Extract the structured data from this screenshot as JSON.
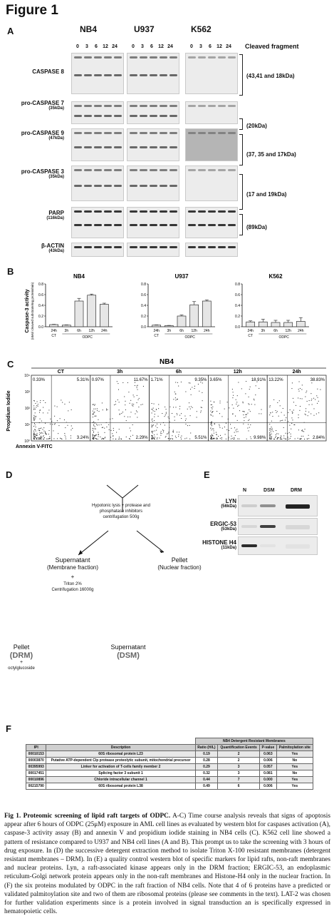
{
  "figure_title": "Figure 1",
  "panel_A": {
    "label": "A",
    "cell_lines": [
      "NB4",
      "U937",
      "K562"
    ],
    "lanes": [
      "0",
      "3",
      "6",
      "12",
      "24"
    ],
    "header_right": "Cleaved fragment",
    "rows": [
      {
        "name": "CASPASE 8",
        "kda": "",
        "fragment": "(43,41 and 18kDa)"
      },
      {
        "name": "pro-CASPASE 7",
        "kda": "(35kDa)",
        "fragment": "(20kDa)"
      },
      {
        "name": "pro-CASPASE 9",
        "kda": "(47kDa)",
        "fragment": "(37, 35 and 17kDa)"
      },
      {
        "name": "pro-CASPASE 3",
        "kda": "(35kDa)",
        "fragment": "(17 and 19kDa)"
      },
      {
        "name": "PARP",
        "kda": "(116kDa)",
        "fragment": "(89kDa)"
      },
      {
        "name": "β-ACTIN",
        "kda": "(43kDa)",
        "fragment": ""
      }
    ]
  },
  "panel_B": {
    "label": "B",
    "ylabel": "Caspase-3 activity",
    "ylabel_sub": "(nMol cleaved substrate/mg protein/min)",
    "chart_data": [
      {
        "type": "bar",
        "title": "NB4",
        "categories": [
          "24h",
          "3h",
          "6h",
          "12h",
          "24h"
        ],
        "values": [
          0.04,
          0.03,
          0.48,
          0.59,
          0.42
        ],
        "errors": [
          0.005,
          0.005,
          0.05,
          0.02,
          0.02
        ],
        "yticks": [
          "0.0",
          "0.2",
          "0.4",
          "0.6",
          "0.8"
        ],
        "ylim": [
          0,
          0.8
        ],
        "group_ct": "CT",
        "group_odpc": "ODPC"
      },
      {
        "type": "bar",
        "title": "U937",
        "categories": [
          "24h",
          "3h",
          "6h",
          "12h",
          "24h"
        ],
        "values": [
          0.03,
          0.02,
          0.2,
          0.41,
          0.48
        ],
        "errors": [
          0.005,
          0.005,
          0.02,
          0.06,
          0.02
        ],
        "yticks": [
          "0.0",
          "0.2",
          "0.4",
          "0.6",
          "0.8"
        ],
        "ylim": [
          0,
          0.8
        ],
        "group_ct": "CT",
        "group_odpc": "ODPC"
      },
      {
        "type": "bar",
        "title": "K562",
        "categories": [
          "24h",
          "3h",
          "6h",
          "12h",
          "24h"
        ],
        "values": [
          0.09,
          0.09,
          0.08,
          0.08,
          0.1
        ],
        "errors": [
          0.02,
          0.05,
          0.04,
          0.04,
          0.07
        ],
        "yticks": [
          "0.0",
          "0.2",
          "0.4",
          "0.6",
          "0.8"
        ],
        "ylim": [
          0,
          0.8
        ],
        "group_ct": "CT",
        "group_odpc": "ODPC"
      }
    ]
  },
  "panel_C": {
    "label": "C",
    "title": "NB4",
    "ylabel": "Propidium Iodide",
    "xlabel": "Annexin V-FITC",
    "ticks": [
      "10⁰",
      "10¹",
      "10²",
      "10³",
      "10⁴"
    ],
    "plots": [
      {
        "title": "CT",
        "ul": "0.33%",
        "ur": "5.31%",
        "lr": "3.24%"
      },
      {
        "title": "3h",
        "ul": "0.97%",
        "ur": "11.67%",
        "lr": "2.29%"
      },
      {
        "title": "6h",
        "ul": "1.71%",
        "ur": "9.35%",
        "lr": "5.51%"
      },
      {
        "title": "12h",
        "ul": "3.65%",
        "ur": "18.91%",
        "lr": "9.98%"
      },
      {
        "title": "24h",
        "ul": "13.22%",
        "ur": "38.83%",
        "lr": "2.84%"
      }
    ]
  },
  "panel_D": {
    "label": "D",
    "step1": "Hypotonic lysis + protease and",
    "step1b": "phosphatase inhibitors",
    "step1c": "centrifugation 500g",
    "sup1": "Supernatant",
    "sup1b": "(Membrane fraction)",
    "pellet1": "Pellet",
    "pellet1b": "(Nuclear fraction)",
    "plus": "+",
    "triton": "Triton 2%",
    "triton_b": "Centrifugation 16000g",
    "pellet2": "Pellet",
    "drm": "(DRM)",
    "octyl": "octylglucoside",
    "sup2": "Supernatant",
    "dsm": "(DSM)"
  },
  "panel_E": {
    "label": "E",
    "lanes": [
      "N",
      "DSM",
      "DRM"
    ],
    "rows": [
      {
        "name": "LYN",
        "kda": "(56kDa)"
      },
      {
        "name": "ERGIC-53",
        "kda": "(53kDa)"
      },
      {
        "name": "HISTONE H4",
        "kda": "(11kDa)"
      }
    ]
  },
  "panel_F": {
    "label": "F",
    "group_header": "NB4 Detergent Resistant Membranes",
    "headers": [
      "IPI",
      "Description",
      "Ratio (H/L)",
      "Quantification Events",
      "P-value",
      "Palmitoylation site"
    ],
    "rows": [
      [
        "00010153",
        "60S ribosomal protein L23",
        "0.19",
        "2",
        "0.063",
        "Yes"
      ],
      [
        "00003870",
        "Putative ATP-dependent Clp protease proteolytic subunit, mitochondrial precursor",
        "0.28",
        "2",
        "0.006",
        "No"
      ],
      [
        "00395993",
        "Linker for activation of T-cells family member 2",
        "0.29",
        "3",
        "0.057",
        "Yes"
      ],
      [
        "00017451",
        "Splicing factor 3 subunit 1",
        "0.32",
        "3",
        "0.081",
        "No"
      ],
      [
        "00010896",
        "Chloride intracellular channel 1",
        "0.44",
        "7",
        "0.000",
        "Yes"
      ],
      [
        "00215790",
        "60S ribosomal protein L38",
        "0.49",
        "6",
        "0.006",
        "Yes"
      ]
    ]
  },
  "caption": {
    "lead": "Fig 1. Proteomic screening of lipid raft targets of ODPC.",
    "body": "A-C) Time course analysis reveals that signs of apoptosis appear after 6 hours of ODPC (25μM) exposure in AML cell lines as evaluated by western blot for caspases activation (A), caspase-3 activity assay (B) and annexin V and propidium iodide staining in NB4 cells (C). K562 cell line showed a pattern of resistance compared to U937 and NB4 cell lines (A and B). This prompt us to take the screening with 3 hours of drug exposure. In (D) the successive detergent extraction method to isolate Triton X-100 resistant membranes (detergent resistant membranes – DRM). In (E) a quality control western blot of specific markers for lipid rafts, non-raft membranes and nuclear proteins. Lyn, a raft-associated kinase appears only in the DRM fraction; ERGIC-53, an endoplasmic reticulum-Golgi network protein appears only in the non-raft membranes and Histone-H4 only in the nuclear fraction. In (F) the six proteins modulated by ODPC in the raft fraction of NB4 cells. Note that 4 of 6 proteins have a predicted or validated palmitoylation site and two of them are ribosomal proteins (please see comments in the text). LAT-2 was chosen for further validation experiments since is a protein involved in signal transduction an is specifically expressed in hematopoietic cells."
  }
}
